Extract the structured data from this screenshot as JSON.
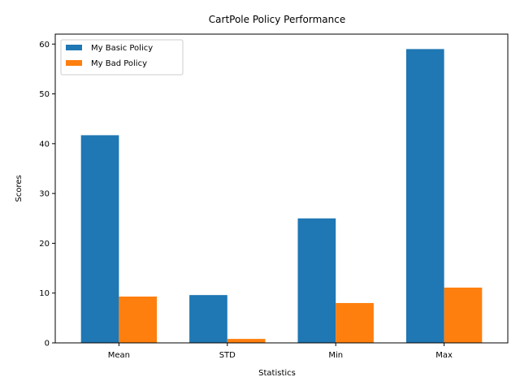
{
  "chart_data": {
    "type": "bar",
    "title": "CartPole Policy Performance",
    "xlabel": "Statistics",
    "ylabel": "Scores",
    "categories": [
      "Mean",
      "STD",
      "Min",
      "Max"
    ],
    "series": [
      {
        "name": "My Basic Policy",
        "color": "#1f77b4",
        "values": [
          41.7,
          9.6,
          25,
          59
        ]
      },
      {
        "name": "My Bad Policy",
        "color": "#ff7f0e",
        "values": [
          9.3,
          0.8,
          8,
          11.1
        ]
      }
    ],
    "ylim": [
      0,
      62
    ],
    "yticks": [
      0,
      10,
      20,
      30,
      40,
      50,
      60
    ],
    "legend": "top-left",
    "grid": false
  }
}
